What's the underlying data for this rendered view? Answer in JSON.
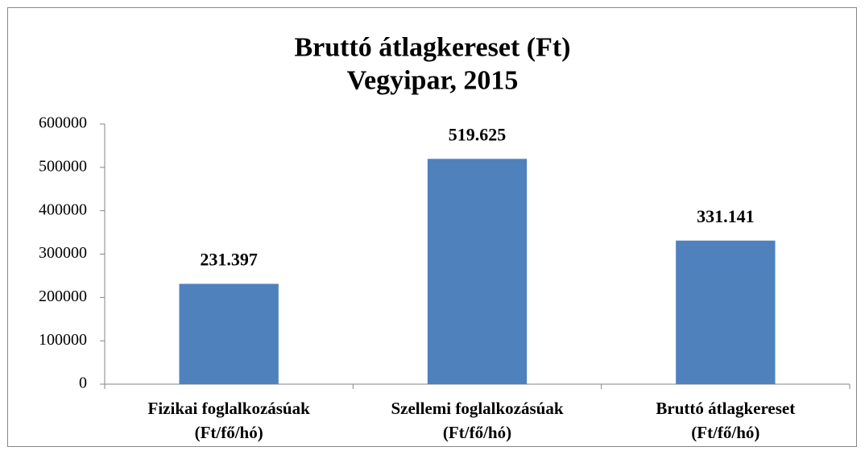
{
  "chart_data": {
    "type": "bar",
    "title": "Bruttó átlagkereset (Ft)\nVegyipar, 2015",
    "categories": [
      "Fizikai foglalkozásúak\n(Ft/fő/hó)",
      "Szellemi foglalkozásúak\n(Ft/fő/hó)",
      "Bruttó átlagkereset\n(Ft/fő/hó)"
    ],
    "values": [
      231397,
      519625,
      331141
    ],
    "value_labels": [
      "231.397",
      "519.625",
      "331.141"
    ],
    "color": "#4f81bd",
    "ylim": [
      0,
      600000
    ],
    "yticks": [
      0,
      100000,
      200000,
      300000,
      400000,
      500000,
      600000
    ],
    "grid": false
  }
}
